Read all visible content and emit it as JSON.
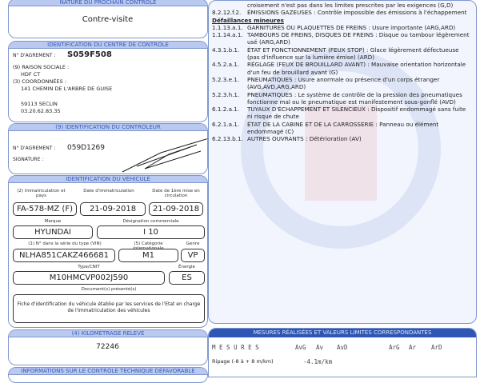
{
  "next_control": {
    "header": "NATURE DU PROCHAIN CONTRÔLE",
    "value": "Contre-visite"
  },
  "center": {
    "header": "IDENTIFICATION DU CENTRE DE CONTRÔLE",
    "agrement_label": "N° D'AGREMENT :",
    "agrement": "S059F508",
    "raison_label": "(9) RAISON SOCIALE :",
    "raison": "HDF CT",
    "coord_label": "(3) COORDONNÉES :",
    "address": "141 CHEMIN DE L'ARBRE DE GUISE",
    "city": "59113 SECLIN",
    "phone": "03.20.62.83.35"
  },
  "controller": {
    "header": "(9) IDENTIFICATION DU CONTRÔLEUR",
    "agrement_label": "N° D'AGREMENT :",
    "agrement": "059D1269",
    "signature_label": "SIGNATURE :"
  },
  "vehicle": {
    "header": "IDENTIFICATION DU VÉHICULE",
    "immat_label": "(2) Immatriculation et pays",
    "immat": "FA-578-MZ (F)",
    "date_immat_label": "Date d'immatriculation",
    "date_immat": "21-09-2018",
    "date_first_label": "Date de 1ère mise en circulation",
    "date_first": "21-09-2018",
    "marque_label": "Marque",
    "marque": "HYUNDAI",
    "designation_label": "Désignation commerciale",
    "designation": "I 10",
    "vin_label": "(1) N° dans la série du type (VIN)",
    "vin": "NLHA851CAKZ466681",
    "cat_label": "(5) Catégorie internationale",
    "cat": "M1",
    "genre_label": "Genre",
    "genre": "VP",
    "type_label": "Type/CNIT",
    "type": "M10HMCVP002J590",
    "energie_label": "Énergie",
    "energie": "ES",
    "docs_label": "Document(s) présenté(s)",
    "docs": "Fiche d'identification du véhicule établie par les services de l'Etat en charge de l'immatriculation des véhicules"
  },
  "mileage": {
    "header": "(4) KILOMÉTRAGE RELEVÉ",
    "value": "72246"
  },
  "info_header": "INFORMATIONS SUR LE CONTRÔLE TECHNIQUE DÉFAVORABLE",
  "defects": {
    "top_line": "croisement n'est pas dans les limites prescrites par les exigences (G,D)",
    "major": [
      {
        "code": "8.2.12.f.2.",
        "text": "ÉMISSIONS GAZEUSES : Contrôle impossible des émissions à l'échappement"
      }
    ],
    "minor_title": "Défaillances mineures",
    "minor": [
      {
        "code": "1.1.13.a.1.",
        "text": "GARNITURES OU PLAQUETTES DE FREINS : Usure importante (ARG,ARD)"
      },
      {
        "code": "1.1.14.a.1.",
        "text": "TAMBOURS DE FREINS, DISQUES DE FREINS : Disque ou tambour légèrement usé (ARG,ARD)"
      },
      {
        "code": "4.3.1.b.1.",
        "text": "ÉTAT ET FONCTIONNEMENT (FEUX STOP) : Glace légèrement défectueuse (pas d'influence sur la lumière émise) (ARD)"
      },
      {
        "code": "4.5.2.a.1.",
        "text": "RÉGLAGE (FEUX DE BROUILLARD AVANT) : Mauvaise orientation horizontale d'un feu de brouillard avant (G)"
      },
      {
        "code": "5.2.3.e.1.",
        "text": "PNEUMATIQUES : Usure anormale ou présence d'un corps étranger (AVG,AVD,ARG,ARD)"
      },
      {
        "code": "5.2.3.h.1.",
        "text": "PNEUMATIQUES : Le système de contrôle de la pression des pneumatiques fonctionne mal ou le pneumatique est manifestement sous-gonflé (AVD)"
      },
      {
        "code": "6.1.2.a.1.",
        "text": "TUYAUX D'ÉCHAPPEMENT ET SILENCIEUX : Dispositif endommagé sans fuite ni risque de chute"
      },
      {
        "code": "6.2.1.a.1.",
        "text": "ÉTAT DE LA CABINE ET DE LA CARROSSERIE : Panneau ou élément endommagé (C)"
      },
      {
        "code": "6.2.13.b.1.",
        "text": "AUTRES OUVRANTS : Détérioration (AV)"
      }
    ]
  },
  "measures": {
    "header": "MESURES RÉALISÉES ET VALEURS LIMITES CORRESPONDANTES",
    "title": "M E S U R E S",
    "cols": [
      "AvG",
      "Av",
      "AvD",
      "ArG",
      "Ar",
      "ArD"
    ],
    "ripage_label": "Ripage (-8 à + 8 m/km)",
    "ripage_value": "-4.1m/km"
  }
}
